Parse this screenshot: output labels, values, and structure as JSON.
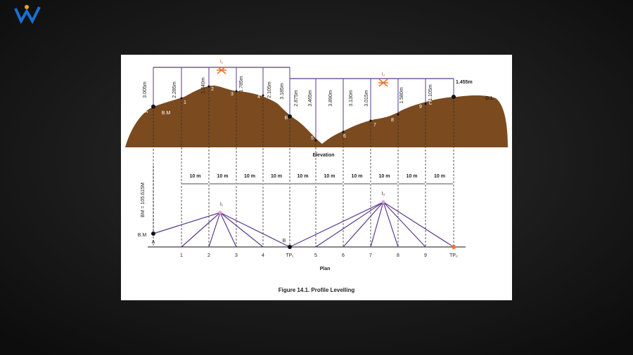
{
  "elevation": {
    "readings": [
      "3.005m",
      "2.285m",
      "1.340m",
      "1.785m",
      "2.105m",
      "3.185m",
      "2.875m",
      "3.465m",
      "3.890m",
      "3.130m",
      "3.015m",
      "1.580m",
      "1.105m",
      "1.455m"
    ],
    "points": [
      "A",
      "B.M",
      "1",
      "2",
      "3",
      "4",
      "B",
      "5",
      "6",
      "7",
      "8",
      "9",
      "C"
    ],
    "instruments": [
      "I₁",
      "I₂"
    ],
    "ground_label": "G.L",
    "title": "Elevation"
  },
  "plan": {
    "benchmark": "BM = 105.615M",
    "distances": [
      "10 m",
      "10 m",
      "10 m",
      "10 m",
      "10 m",
      "10 m",
      "10 m",
      "10 m",
      "10 m",
      "10 m"
    ],
    "stations": [
      "1",
      "2",
      "3",
      "4",
      "TP₁",
      "5",
      "6",
      "7",
      "8",
      "9",
      "TP₂"
    ],
    "bm_labels": [
      "B.M",
      "A"
    ],
    "turning_label": "B",
    "instruments": [
      "I₁",
      "I₂"
    ],
    "title": "Plan"
  },
  "caption": "Figure 14.1. Profile Levelling"
}
